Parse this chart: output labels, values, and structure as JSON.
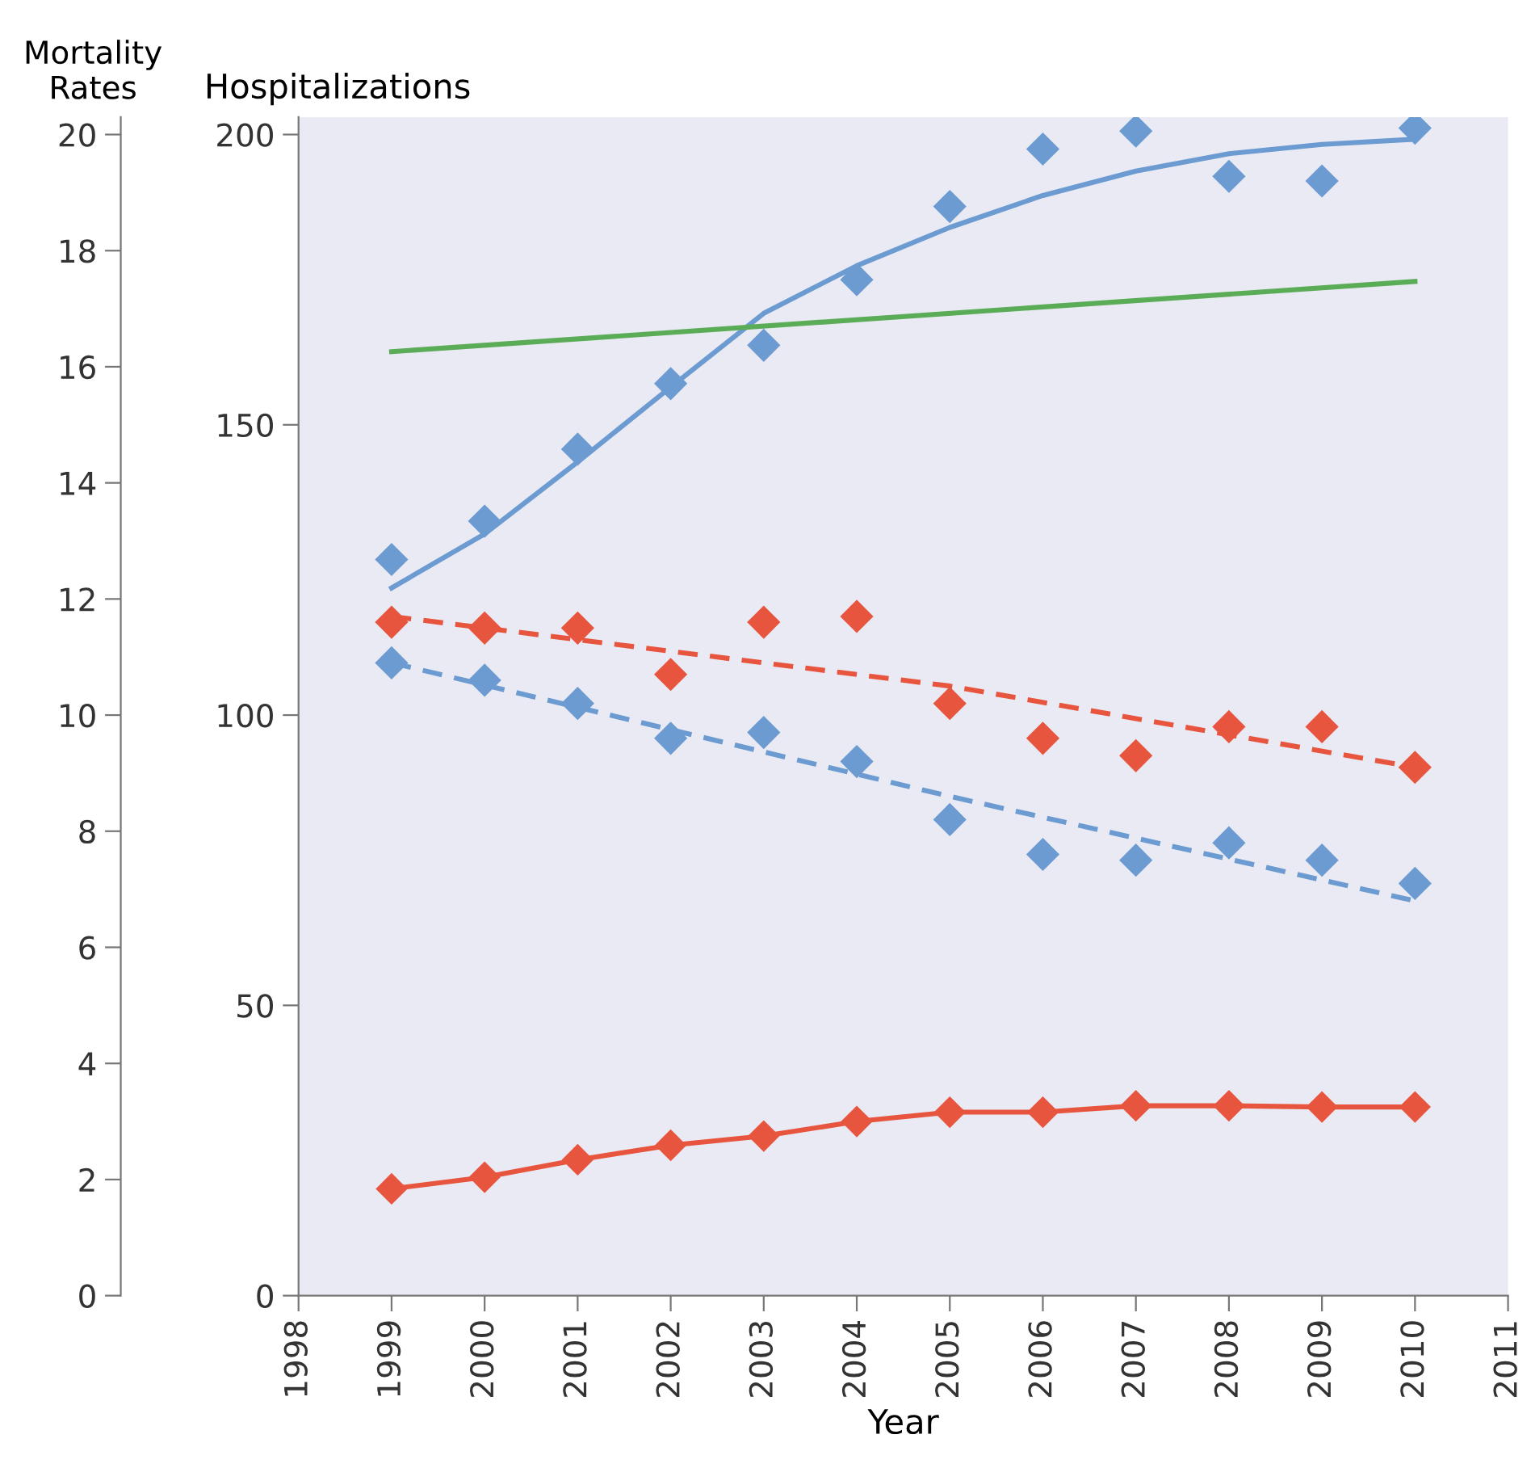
{
  "chart_data": {
    "type": "scatter",
    "xlabel": "Year",
    "ylabel": "Hospitalizations",
    "y2label": "Mortality\nRates",
    "x": [
      1999,
      2000,
      2001,
      2002,
      2003,
      2004,
      2005,
      2006,
      2007,
      2008,
      2009,
      2010
    ],
    "xlim": [
      1998,
      2011
    ],
    "xticks": [
      1998,
      1999,
      2000,
      2001,
      2002,
      2003,
      2004,
      2005,
      2006,
      2007,
      2008,
      2009,
      2010,
      2011
    ],
    "ylim": [
      0,
      203
    ],
    "yticks": [
      0,
      50,
      100,
      150,
      200
    ],
    "y2lim": [
      0,
      20.3
    ],
    "y2ticks": [
      0,
      2,
      4,
      6,
      8,
      10,
      12,
      14,
      16,
      18,
      20
    ],
    "grid": false,
    "legend": false,
    "series": [
      {
        "marker": "diamond",
        "color": "#6b9bd1",
        "values": [
          126.8,
          133.4,
          145.8,
          157.1,
          163.7,
          175.0,
          187.6,
          197.5,
          200.6,
          192.8,
          192.0,
          201.1
        ]
      },
      {
        "type": "line",
        "marker": "none",
        "line_style": "solid",
        "color": "#6b9bd1",
        "values": [
          121.9,
          131.2,
          143.6,
          156.5,
          169.2,
          177.4,
          184.0,
          189.5,
          193.7,
          196.7,
          198.3,
          199.2
        ]
      },
      {
        "type": "line",
        "marker": "none",
        "line_style": "solid",
        "color": "#5aac56",
        "x": [
          1999,
          2010
        ],
        "values": [
          162.6,
          174.7
        ]
      },
      {
        "axis": "y2",
        "marker": "diamond",
        "color": "#e8553e",
        "values": [
          11.6,
          11.5,
          11.5,
          10.7,
          11.6,
          11.7,
          10.2,
          9.6,
          9.3,
          9.8,
          9.8,
          9.1
        ]
      },
      {
        "type": "line",
        "axis": "y2",
        "marker": "none",
        "line_style": "dashed",
        "color": "#e8553e",
        "x": [
          1999,
          2005,
          2010
        ],
        "values": [
          11.7,
          10.5,
          9.1
        ]
      },
      {
        "axis": "y2",
        "marker": "diamond",
        "color": "#6b9bd1",
        "values": [
          10.9,
          10.6,
          10.2,
          9.6,
          9.7,
          9.2,
          8.2,
          7.6,
          7.5,
          7.8,
          7.5,
          7.1
        ]
      },
      {
        "type": "line",
        "axis": "y2",
        "marker": "none",
        "line_style": "dashed",
        "color": "#6b9bd1",
        "x": [
          1999,
          2005,
          2010
        ],
        "values": [
          10.9,
          8.6,
          6.8
        ]
      },
      {
        "type": "line",
        "marker": "diamond",
        "line_style": "solid",
        "color": "#e8553e",
        "values": [
          18.4,
          20.4,
          23.4,
          25.9,
          27.5,
          30.0,
          31.6,
          31.6,
          32.7,
          32.7,
          32.5,
          32.5
        ]
      }
    ]
  }
}
